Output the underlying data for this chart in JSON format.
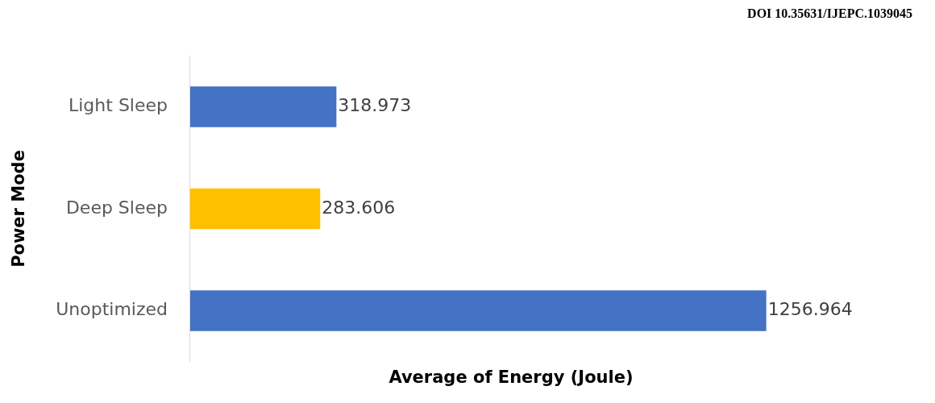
{
  "chart_data": {
    "type": "bar",
    "orientation": "horizontal",
    "categories": [
      "Light Sleep",
      "Deep Sleep",
      "Unoptimized"
    ],
    "values": [
      318.973,
      283.606,
      1256.964
    ],
    "colors": [
      "#4472c4",
      "#ffc000",
      "#4472c4"
    ],
    "xlabel": "Average of Energy (Joule)",
    "ylabel": "Power Mode",
    "data_labels": true,
    "legend": false,
    "annotations": [
      "DOI 10.35631/IJEPC.1039045"
    ]
  }
}
